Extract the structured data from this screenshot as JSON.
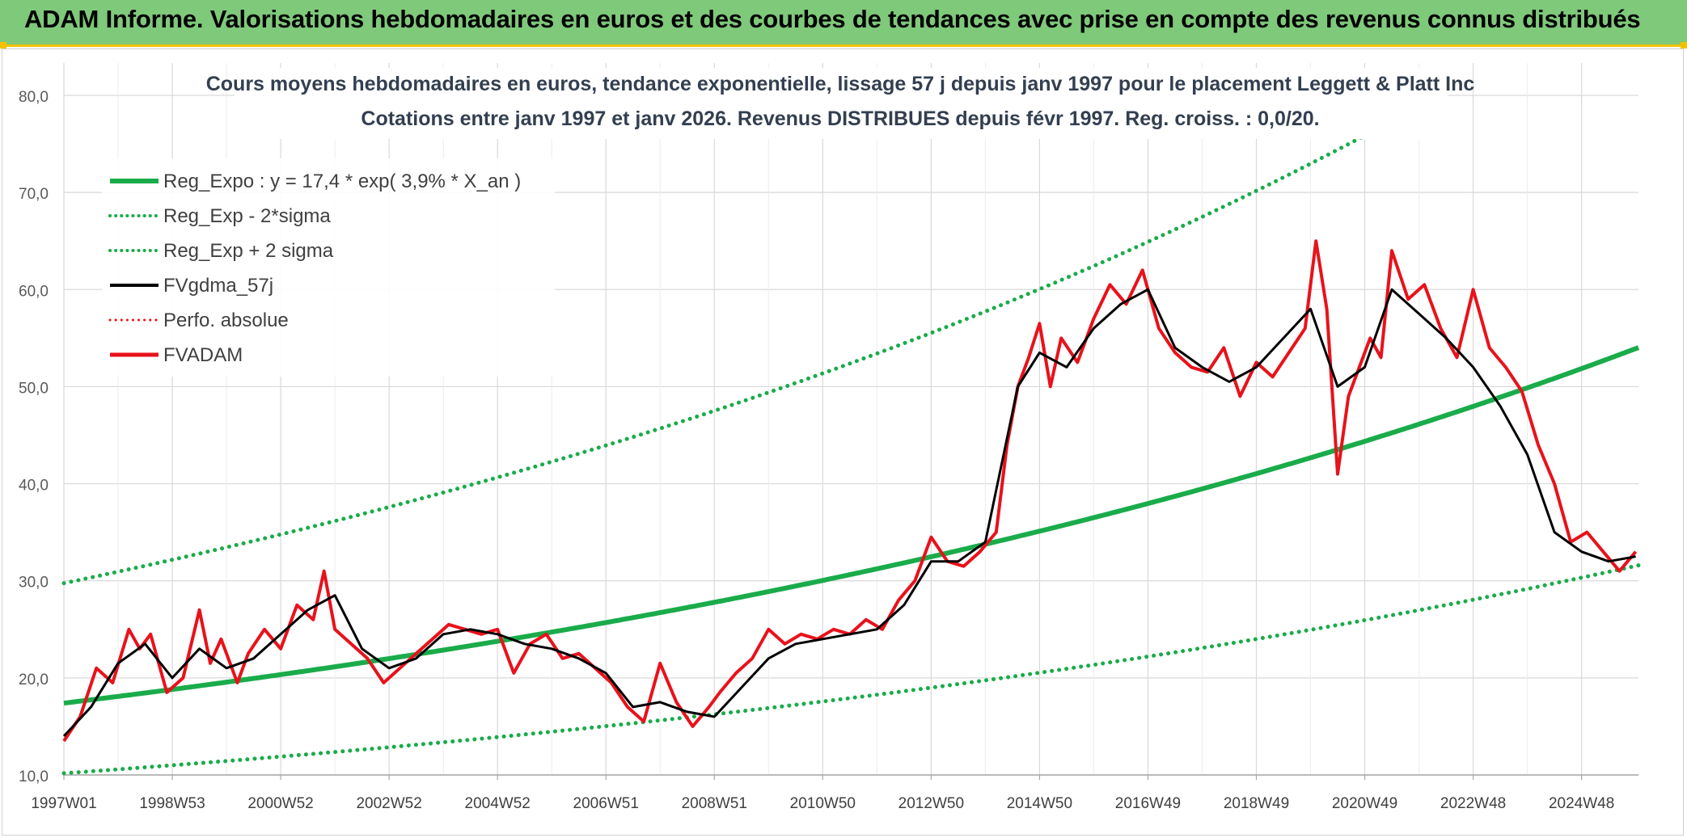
{
  "header": {
    "title": "ADAM Informe. Valorisations hebdomadaires en euros et des courbes de tendances avec prise en compte des revenus connus distribués",
    "background_color": "#7fc97a",
    "accent_color": "#f2c200"
  },
  "chart_data": {
    "type": "line",
    "title_line1": "Cours moyens hebdomadaires en euros, tendance exponentielle, lissage 57 j depuis janv 1997 pour le placement Leggett & Platt Inc",
    "title_line2": "Cotations entre janv 1997 et janv 2026. Revenus DISTRIBUES depuis févr 1997. Reg. croiss. : 0,0/20.",
    "xlabel": "",
    "ylabel": "",
    "ylim": [
      10,
      80
    ],
    "xlim": [
      1997.0,
      2026.05
    ],
    "grid": true,
    "legend_position": "top-left",
    "y_ticks": [
      "10,0",
      "20,0",
      "30,0",
      "40,0",
      "50,0",
      "60,0",
      "70,0",
      "80,0"
    ],
    "y_tick_values": [
      10,
      20,
      30,
      40,
      50,
      60,
      70,
      80
    ],
    "x_tick_labels": [
      "1997W01",
      "1998W53",
      "2000W52",
      "2002W52",
      "2004W52",
      "2006W51",
      "2008W51",
      "2010W50",
      "2012W50",
      "2014W50",
      "2016W49",
      "2018W49",
      "2020W49",
      "2022W48",
      "2024W48"
    ],
    "x_tick_years": [
      1997.0,
      1999.0,
      2001.0,
      2003.0,
      2005.0,
      2007.0,
      2009.0,
      2011.0,
      2013.0,
      2015.0,
      2017.0,
      2019.0,
      2021.0,
      2023.0,
      2025.0
    ],
    "legend": [
      {
        "label": "Reg_Expo : y = 17,4 * exp( 3,9% *  X_an )",
        "color": "#1aab4b",
        "style": "solid",
        "width": 6
      },
      {
        "label": "Reg_Exp - 2*sigma",
        "color": "#1aab4b",
        "style": "dotted",
        "width": 4
      },
      {
        "label": "Reg_Exp + 2 sigma",
        "color": "#1aab4b",
        "style": "dotted",
        "width": 4
      },
      {
        "label": "FVgdma_57j",
        "color": "#000000",
        "style": "solid",
        "width": 4
      },
      {
        "label": "Perfo. absolue",
        "color": "#e8121b",
        "style": "dotted",
        "width": 3
      },
      {
        "label": "FVADAM",
        "color": "#e8121b",
        "style": "solid",
        "width": 5
      }
    ],
    "regression": {
      "a": 17.4,
      "rate": 0.039,
      "band_factor": 1.71,
      "x0_year": 1997.0
    },
    "series": [
      {
        "name": "FVADAM",
        "x": [
          1997.0,
          1997.3,
          1997.6,
          1997.9,
          1998.2,
          1998.4,
          1998.6,
          1998.9,
          1999.2,
          1999.5,
          1999.7,
          1999.9,
          2000.2,
          2000.4,
          2000.7,
          2001.0,
          2001.3,
          2001.6,
          2001.8,
          2002.0,
          2002.3,
          2002.6,
          2002.9,
          2003.2,
          2003.5,
          2003.8,
          2004.1,
          2004.4,
          2004.7,
          2005.0,
          2005.3,
          2005.6,
          2005.9,
          2006.2,
          2006.5,
          2006.8,
          2007.1,
          2007.4,
          2007.7,
          2008.0,
          2008.3,
          2008.6,
          2008.9,
          2009.1,
          2009.4,
          2009.7,
          2010.0,
          2010.3,
          2010.6,
          2010.9,
          2011.2,
          2011.5,
          2011.8,
          2012.1,
          2012.4,
          2012.7,
          2013.0,
          2013.3,
          2013.6,
          2013.9,
          2014.2,
          2014.4,
          2014.6,
          2014.8,
          2015.0,
          2015.2,
          2015.4,
          2015.7,
          2016.0,
          2016.3,
          2016.6,
          2016.9,
          2017.2,
          2017.5,
          2017.8,
          2018.1,
          2018.4,
          2018.7,
          2019.0,
          2019.3,
          2019.6,
          2019.9,
          2020.1,
          2020.3,
          2020.5,
          2020.7,
          2020.9,
          2021.1,
          2021.3,
          2021.5,
          2021.8,
          2022.1,
          2022.4,
          2022.7,
          2023.0,
          2023.3,
          2023.6,
          2023.9,
          2024.2,
          2024.5,
          2024.8,
          2025.1,
          2025.4,
          2025.7,
          2026.0
        ],
        "values": [
          13.5,
          16.0,
          21.0,
          19.5,
          25.0,
          23.0,
          24.5,
          18.5,
          20.0,
          27.0,
          21.5,
          24.0,
          19.5,
          22.5,
          25.0,
          23.0,
          27.5,
          26.0,
          31.0,
          25.0,
          23.5,
          22.0,
          19.5,
          21.0,
          22.5,
          24.0,
          25.5,
          25.0,
          24.5,
          25.0,
          20.5,
          23.5,
          24.5,
          22.0,
          22.5,
          21.0,
          19.5,
          17.0,
          15.5,
          21.5,
          17.5,
          15.0,
          17.0,
          18.5,
          20.5,
          22.0,
          25.0,
          23.5,
          24.5,
          24.0,
          25.0,
          24.5,
          26.0,
          25.0,
          28.0,
          30.0,
          34.5,
          32.0,
          31.5,
          33.0,
          35.0,
          44.0,
          50.0,
          53.0,
          56.5,
          50.0,
          55.0,
          52.5,
          57.0,
          60.5,
          58.5,
          62.0,
          56.0,
          53.5,
          52.0,
          51.5,
          54.0,
          49.0,
          52.5,
          51.0,
          53.5,
          56.0,
          65.0,
          58.0,
          41.0,
          49.0,
          52.0,
          55.0,
          53.0,
          64.0,
          59.0,
          60.5,
          56.0,
          53.0,
          60.0,
          54.0,
          52.0,
          49.5,
          44.0,
          40.0,
          34.0,
          35.0,
          33.0,
          31.0,
          33.0
        ]
      },
      {
        "name": "FVgdma_57j",
        "x": [
          1997.0,
          1997.5,
          1998.0,
          1998.5,
          1999.0,
          1999.5,
          2000.0,
          2000.5,
          2001.0,
          2001.5,
          2002.0,
          2002.5,
          2003.0,
          2003.5,
          2004.0,
          2004.5,
          2005.0,
          2005.5,
          2006.0,
          2006.5,
          2007.0,
          2007.5,
          2008.0,
          2008.5,
          2009.0,
          2009.5,
          2010.0,
          2010.5,
          2011.0,
          2011.5,
          2012.0,
          2012.5,
          2013.0,
          2013.5,
          2014.0,
          2014.3,
          2014.6,
          2015.0,
          2015.5,
          2016.0,
          2016.5,
          2017.0,
          2017.5,
          2018.0,
          2018.5,
          2019.0,
          2019.5,
          2020.0,
          2020.5,
          2021.0,
          2021.5,
          2022.0,
          2022.5,
          2023.0,
          2023.5,
          2024.0,
          2024.5,
          2025.0,
          2025.5,
          2026.0
        ],
        "values": [
          14.0,
          17.0,
          21.5,
          23.5,
          20.0,
          23.0,
          21.0,
          22.0,
          24.5,
          27.0,
          28.5,
          23.0,
          21.0,
          22.0,
          24.5,
          25.0,
          24.5,
          23.5,
          23.0,
          22.0,
          20.5,
          17.0,
          17.5,
          16.5,
          16.0,
          19.0,
          22.0,
          23.5,
          24.0,
          24.5,
          25.0,
          27.5,
          32.0,
          32.0,
          34.0,
          42.0,
          50.0,
          53.5,
          52.0,
          56.0,
          58.5,
          60.0,
          54.0,
          52.0,
          50.5,
          52.0,
          55.0,
          58.0,
          50.0,
          52.0,
          60.0,
          57.5,
          55.0,
          52.0,
          48.0,
          43.0,
          35.0,
          33.0,
          32.0,
          32.5
        ]
      }
    ]
  }
}
